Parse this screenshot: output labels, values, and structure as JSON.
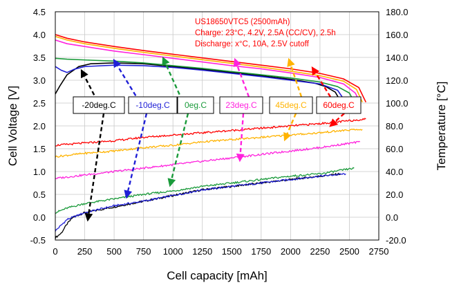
{
  "chart_data": {
    "type": "line",
    "xlabel": "Cell capacity [mAh]",
    "ylabel": "Cell Voltage [V]",
    "y2label": "Temperature [°C]",
    "xlim": [
      0,
      2750
    ],
    "ylim": [
      -0.5,
      4.5
    ],
    "y2lim": [
      -20,
      180
    ],
    "grid": true,
    "x_ticks": [
      "0",
      "250",
      "500",
      "750",
      "1000",
      "1250",
      "1500",
      "1750",
      "2000",
      "2250",
      "2500",
      "2750"
    ],
    "y_ticks": [
      "-0.5",
      "0.0",
      "0.5",
      "1.0",
      "1.5",
      "2.0",
      "2.5",
      "3.0",
      "3.5",
      "4.0",
      "4.5"
    ],
    "y2_ticks": [
      "-20.0",
      "0.0",
      "20.0",
      "40.0",
      "60.0",
      "80.0",
      "100.0",
      "120.0",
      "140.0",
      "160.0",
      "180.0"
    ],
    "annotation_lines": [
      "US18650VTC5 (2500mAh)",
      "Charge: 23°C, 4.2V, 2.5A (CC/CV), 2.5h",
      "Discharge: x°C, 10A, 2.5V cutoff"
    ],
    "annotation_color": "#ff0000",
    "series": [
      {
        "name": "-20deg.C",
        "color": "#000000",
        "voltage": [
          [
            0,
            2.7
          ],
          [
            40,
            2.88
          ],
          [
            100,
            3.12
          ],
          [
            200,
            3.3
          ],
          [
            300,
            3.36
          ],
          [
            500,
            3.38
          ],
          [
            750,
            3.36
          ],
          [
            1000,
            3.3
          ],
          [
            1250,
            3.24
          ],
          [
            1500,
            3.17
          ],
          [
            1750,
            3.1
          ],
          [
            2000,
            3.02
          ],
          [
            2200,
            2.94
          ],
          [
            2300,
            2.86
          ],
          [
            2380,
            2.74
          ],
          [
            2430,
            2.52
          ]
        ],
        "temperature": [
          [
            0,
            -18
          ],
          [
            50,
            -14
          ],
          [
            100,
            -6
          ],
          [
            150,
            0
          ],
          [
            250,
            4
          ],
          [
            500,
            9
          ],
          [
            750,
            14
          ],
          [
            1000,
            19
          ],
          [
            1250,
            24
          ],
          [
            1500,
            27
          ],
          [
            1750,
            30
          ],
          [
            2000,
            33
          ],
          [
            2250,
            36
          ],
          [
            2430,
            38
          ]
        ]
      },
      {
        "name": "-10deg.C",
        "color": "#1f1fd6",
        "voltage": [
          [
            0,
            3.3
          ],
          [
            50,
            3.22
          ],
          [
            100,
            3.17
          ],
          [
            160,
            3.24
          ],
          [
            250,
            3.3
          ],
          [
            500,
            3.33
          ],
          [
            750,
            3.32
          ],
          [
            1000,
            3.28
          ],
          [
            1250,
            3.22
          ],
          [
            1500,
            3.15
          ],
          [
            1750,
            3.08
          ],
          [
            2000,
            3.0
          ],
          [
            2250,
            2.92
          ],
          [
            2400,
            2.78
          ],
          [
            2470,
            2.52
          ]
        ],
        "temperature": [
          [
            0,
            -12
          ],
          [
            100,
            -2
          ],
          [
            250,
            4
          ],
          [
            500,
            10
          ],
          [
            750,
            14
          ],
          [
            1000,
            19
          ],
          [
            1250,
            24
          ],
          [
            1500,
            27
          ],
          [
            1750,
            30
          ],
          [
            2000,
            33
          ],
          [
            2250,
            36
          ],
          [
            2470,
            38
          ]
        ]
      },
      {
        "name": "0eg.C",
        "color": "#1a9a3a",
        "voltage": [
          [
            0,
            3.48
          ],
          [
            100,
            3.46
          ],
          [
            300,
            3.44
          ],
          [
            500,
            3.42
          ],
          [
            750,
            3.38
          ],
          [
            1000,
            3.32
          ],
          [
            1250,
            3.26
          ],
          [
            1500,
            3.19
          ],
          [
            1750,
            3.12
          ],
          [
            2000,
            3.05
          ],
          [
            2250,
            2.96
          ],
          [
            2400,
            2.86
          ],
          [
            2500,
            2.72
          ],
          [
            2540,
            2.52
          ]
        ],
        "temperature": [
          [
            0,
            4
          ],
          [
            100,
            8
          ],
          [
            250,
            12
          ],
          [
            500,
            16
          ],
          [
            750,
            20
          ],
          [
            1000,
            23
          ],
          [
            1250,
            27
          ],
          [
            1500,
            30
          ],
          [
            1750,
            33
          ],
          [
            2000,
            36
          ],
          [
            2250,
            38
          ],
          [
            2540,
            43
          ]
        ]
      },
      {
        "name": "23deg.C",
        "color": "#ff22dd",
        "voltage": [
          [
            0,
            3.88
          ],
          [
            100,
            3.8
          ],
          [
            250,
            3.74
          ],
          [
            500,
            3.64
          ],
          [
            750,
            3.56
          ],
          [
            1000,
            3.48
          ],
          [
            1250,
            3.4
          ],
          [
            1500,
            3.32
          ],
          [
            1750,
            3.25
          ],
          [
            2000,
            3.16
          ],
          [
            2250,
            3.06
          ],
          [
            2450,
            2.92
          ],
          [
            2550,
            2.72
          ],
          [
            2590,
            2.52
          ]
        ],
        "temperature": [
          [
            0,
            34
          ],
          [
            250,
            37
          ],
          [
            500,
            40
          ],
          [
            750,
            43
          ],
          [
            1000,
            46
          ],
          [
            1250,
            49
          ],
          [
            1500,
            52
          ],
          [
            1750,
            55
          ],
          [
            2000,
            58
          ],
          [
            2250,
            61
          ],
          [
            2450,
            64
          ],
          [
            2590,
            66
          ]
        ]
      },
      {
        "name": "45deg.C",
        "color": "#ffb300",
        "voltage": [
          [
            0,
            3.96
          ],
          [
            100,
            3.88
          ],
          [
            250,
            3.8
          ],
          [
            500,
            3.7
          ],
          [
            750,
            3.61
          ],
          [
            1000,
            3.53
          ],
          [
            1250,
            3.45
          ],
          [
            1500,
            3.37
          ],
          [
            1750,
            3.29
          ],
          [
            2000,
            3.2
          ],
          [
            2250,
            3.1
          ],
          [
            2450,
            2.98
          ],
          [
            2560,
            2.8
          ],
          [
            2610,
            2.52
          ]
        ],
        "temperature": [
          [
            0,
            53
          ],
          [
            250,
            56
          ],
          [
            500,
            58
          ],
          [
            750,
            61
          ],
          [
            1000,
            63
          ],
          [
            1250,
            66
          ],
          [
            1500,
            68
          ],
          [
            1750,
            70
          ],
          [
            2000,
            72
          ],
          [
            2250,
            74
          ],
          [
            2450,
            76
          ],
          [
            2610,
            77
          ]
        ]
      },
      {
        "name": "60deg.C",
        "color": "#ff0000",
        "voltage": [
          [
            0,
            4.0
          ],
          [
            100,
            3.92
          ],
          [
            250,
            3.84
          ],
          [
            500,
            3.74
          ],
          [
            750,
            3.65
          ],
          [
            1000,
            3.57
          ],
          [
            1250,
            3.49
          ],
          [
            1500,
            3.41
          ],
          [
            1750,
            3.33
          ],
          [
            2000,
            3.25
          ],
          [
            2250,
            3.15
          ],
          [
            2450,
            3.03
          ],
          [
            2580,
            2.84
          ],
          [
            2640,
            2.52
          ]
        ],
        "temperature": [
          [
            0,
            63
          ],
          [
            250,
            65
          ],
          [
            500,
            67
          ],
          [
            750,
            70
          ],
          [
            1000,
            72
          ],
          [
            1250,
            74
          ],
          [
            1500,
            76
          ],
          [
            1750,
            78
          ],
          [
            2000,
            80
          ],
          [
            2250,
            82
          ],
          [
            2450,
            84
          ],
          [
            2640,
            86
          ]
        ]
      }
    ],
    "series_labels": [
      {
        "text": "-20deg.C",
        "color": "#000000",
        "arrow_color": "#000000"
      },
      {
        "text": "-10deg.C",
        "color": "#1f1fd6",
        "arrow_color": "#1f1fd6"
      },
      {
        "text": "0eg.C",
        "color": "#1a9a3a",
        "arrow_color": "#1a9a3a"
      },
      {
        "text": "23deg.C",
        "color": "#ff22dd",
        "arrow_color": "#ff22dd"
      },
      {
        "text": "45deg.C",
        "color": "#ffb300",
        "arrow_color": "#ffb300"
      },
      {
        "text": "60deg.C",
        "color": "#ff0000",
        "arrow_color": "#ff0000"
      }
    ]
  }
}
